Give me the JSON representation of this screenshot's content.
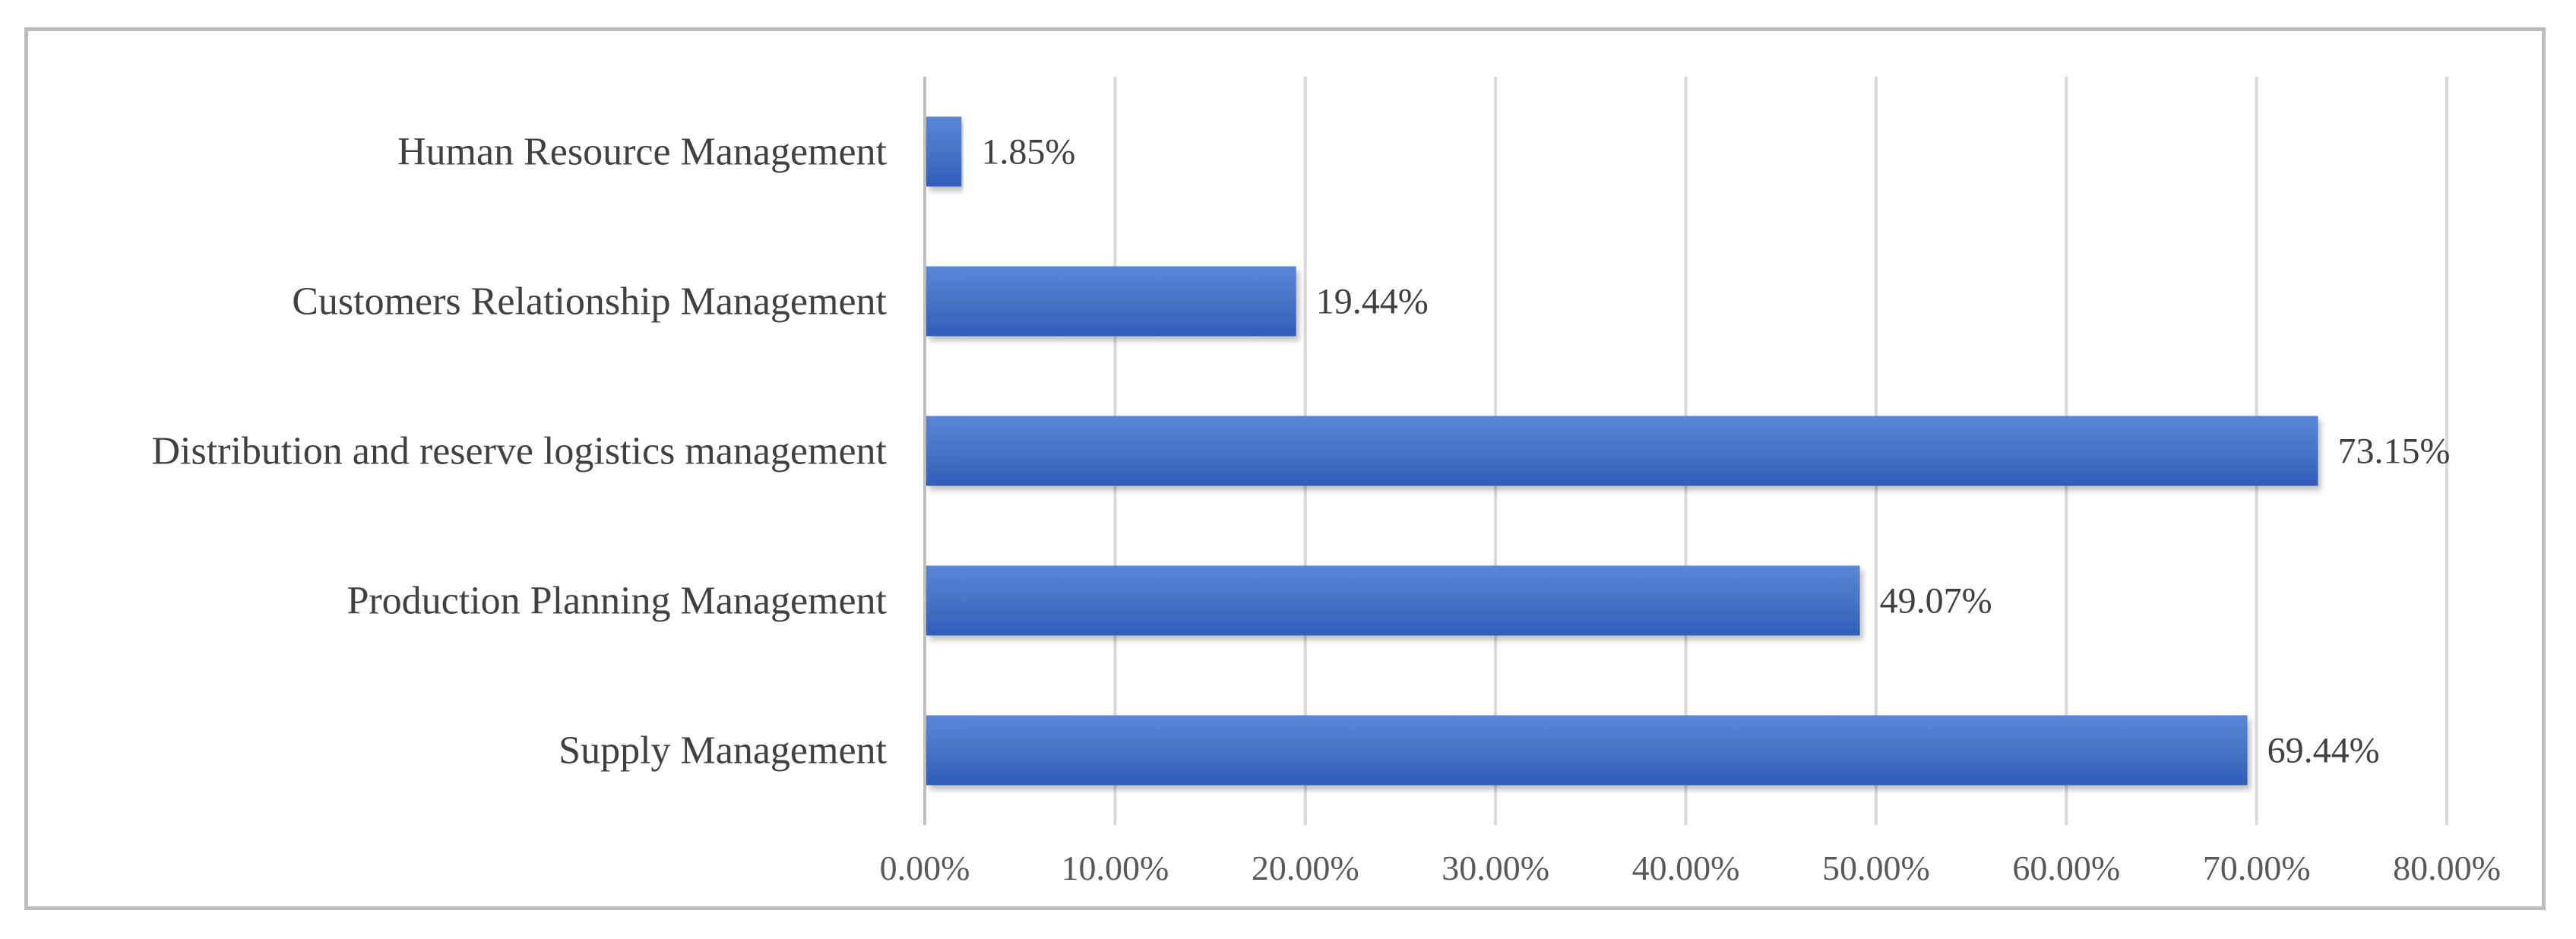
{
  "chart_data": {
    "type": "bar",
    "orientation": "horizontal",
    "categories": [
      "Human Resource Management",
      "Customers Relationship Management",
      "Distribution and reserve logistics management",
      "Production Planning Management",
      "Supply Management"
    ],
    "values": [
      1.85,
      19.44,
      73.15,
      49.07,
      69.44
    ],
    "value_labels": [
      "1.85%",
      "19.44%",
      "73.15%",
      "49.07%",
      "69.44%"
    ],
    "xlim": [
      0,
      80
    ],
    "x_ticks": [
      0,
      10,
      20,
      30,
      40,
      50,
      60,
      70,
      80
    ],
    "x_tick_labels": [
      "0.00%",
      "10.00%",
      "20.00%",
      "30.00%",
      "40.00%",
      "50.00%",
      "60.00%",
      "70.00%",
      "80.00%"
    ],
    "grid": true,
    "legend": "none",
    "title": "",
    "xlabel": "",
    "ylabel": "",
    "bar_color": "#4472C4",
    "bar_color_light": "#5B86D6",
    "bar_color_dark": "#2F5DB8"
  }
}
